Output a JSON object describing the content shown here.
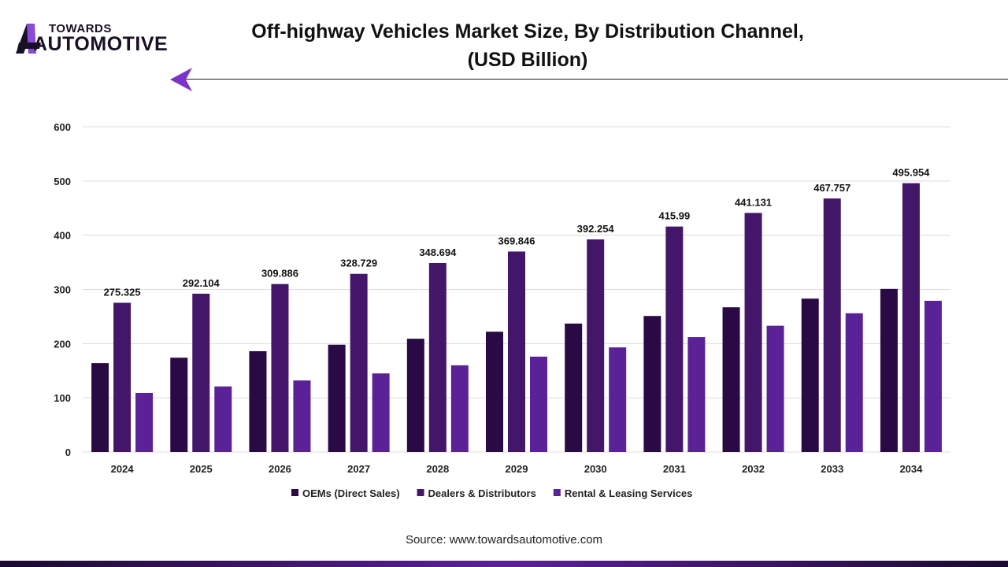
{
  "header": {
    "logo_top": "TOWARDS",
    "logo_bottom": "AUTOMOTIVE",
    "title_line1": "Off-highway Vehicles Market Size, By Distribution Channel,",
    "title_line2": "(USD Billion)"
  },
  "source": "Source: www.towardsautomotive.com",
  "chart_data": {
    "type": "bar",
    "title": "Off-highway Vehicles Market Size, By Distribution Channel, (USD Billion)",
    "categories": [
      "2024",
      "2025",
      "2026",
      "2027",
      "2028",
      "2029",
      "2030",
      "2031",
      "2032",
      "2033",
      "2034"
    ],
    "ylim": [
      0,
      600
    ],
    "yticks": [
      0,
      100,
      200,
      300,
      400,
      500,
      600
    ],
    "grid": true,
    "legend": "bottom",
    "series": [
      {
        "name": "OEMs (Direct Sales)",
        "color": "#2a0a45",
        "values": [
          164,
          174,
          186,
          198,
          209,
          222,
          237,
          251,
          267,
          283,
          301
        ]
      },
      {
        "name": "Dealers & Distributors",
        "color": "#441669",
        "values": [
          275.325,
          292.104,
          309.886,
          328.729,
          348.694,
          369.846,
          392.254,
          415.99,
          441.131,
          467.757,
          495.954
        ],
        "labels": [
          "275.325",
          "292.104",
          "309.886",
          "328.729",
          "348.694",
          "369.846",
          "392.254",
          "415.99",
          "441.131",
          "467.757",
          "495.954"
        ]
      },
      {
        "name": "Rental & Leasing Services",
        "color": "#5b2196",
        "values": [
          109,
          121,
          132,
          145,
          160,
          176,
          193,
          212,
          233,
          256,
          279
        ]
      }
    ]
  }
}
